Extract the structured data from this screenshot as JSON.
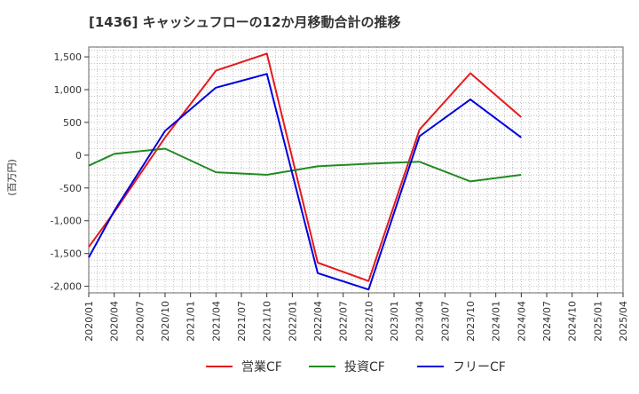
{
  "chart_data": {
    "type": "line",
    "title": "[1436]  キャッシュフローの12か月移動合計の推移",
    "ylabel": "(百万円)",
    "xlabel": "",
    "ylim": [
      -2100,
      1650
    ],
    "yticks": [
      -2000,
      -1500,
      -1000,
      -500,
      0,
      500,
      1000,
      1500
    ],
    "ytick_labels": [
      "-2,000",
      "-1,500",
      "-1,000",
      "-500",
      "0",
      "500",
      "1,000",
      "1,500"
    ],
    "x_ticks": [
      "2020/01",
      "2020/04",
      "2020/07",
      "2020/10",
      "2021/01",
      "2021/04",
      "2021/07",
      "2021/10",
      "2022/01",
      "2022/04",
      "2022/07",
      "2022/10",
      "2023/01",
      "2023/04",
      "2023/07",
      "2023/10",
      "2024/01",
      "2024/04",
      "2024/07",
      "2024/10",
      "2025/01",
      "2025/04"
    ],
    "grid": true,
    "legend_position": "bottom",
    "series": [
      {
        "name": "営業CF",
        "color": "#e41a1c",
        "points": [
          {
            "x": "2020/01",
            "y": -1400
          },
          {
            "x": "2020/04",
            "y": -870
          },
          {
            "x": "2020/10",
            "y": 270
          },
          {
            "x": "2021/04",
            "y": 1290
          },
          {
            "x": "2021/10",
            "y": 1550
          },
          {
            "x": "2022/04",
            "y": -1640
          },
          {
            "x": "2022/10",
            "y": -1920
          },
          {
            "x": "2023/04",
            "y": 390
          },
          {
            "x": "2023/10",
            "y": 1250
          },
          {
            "x": "2024/04",
            "y": 580
          }
        ]
      },
      {
        "name": "投資CF",
        "color": "#228b22",
        "points": [
          {
            "x": "2020/01",
            "y": -160
          },
          {
            "x": "2020/04",
            "y": 20
          },
          {
            "x": "2020/10",
            "y": 100
          },
          {
            "x": "2021/04",
            "y": -260
          },
          {
            "x": "2021/10",
            "y": -300
          },
          {
            "x": "2022/04",
            "y": -170
          },
          {
            "x": "2022/10",
            "y": -130
          },
          {
            "x": "2023/04",
            "y": -100
          },
          {
            "x": "2023/10",
            "y": -400
          },
          {
            "x": "2024/04",
            "y": -300
          }
        ]
      },
      {
        "name": "フリーCF",
        "color": "#0000dd",
        "points": [
          {
            "x": "2020/01",
            "y": -1560
          },
          {
            "x": "2020/04",
            "y": -850
          },
          {
            "x": "2020/10",
            "y": 370
          },
          {
            "x": "2021/04",
            "y": 1030
          },
          {
            "x": "2021/10",
            "y": 1240
          },
          {
            "x": "2022/04",
            "y": -1800
          },
          {
            "x": "2022/10",
            "y": -2050
          },
          {
            "x": "2023/04",
            "y": 290
          },
          {
            "x": "2023/10",
            "y": 850
          },
          {
            "x": "2024/04",
            "y": 270
          }
        ]
      }
    ]
  }
}
